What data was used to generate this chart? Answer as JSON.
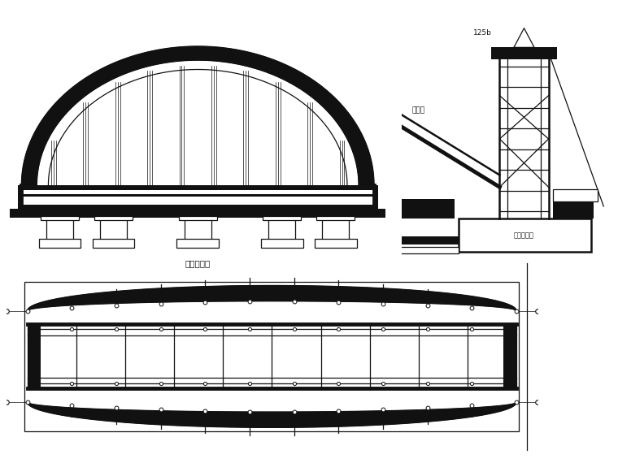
{
  "bg_color": "#ffffff",
  "lc": "#111111",
  "label_hun_tu": "混凝土基础",
  "label_jian_dao": "剪刀撙",
  "label_125b": "125b",
  "fs": 7.5
}
